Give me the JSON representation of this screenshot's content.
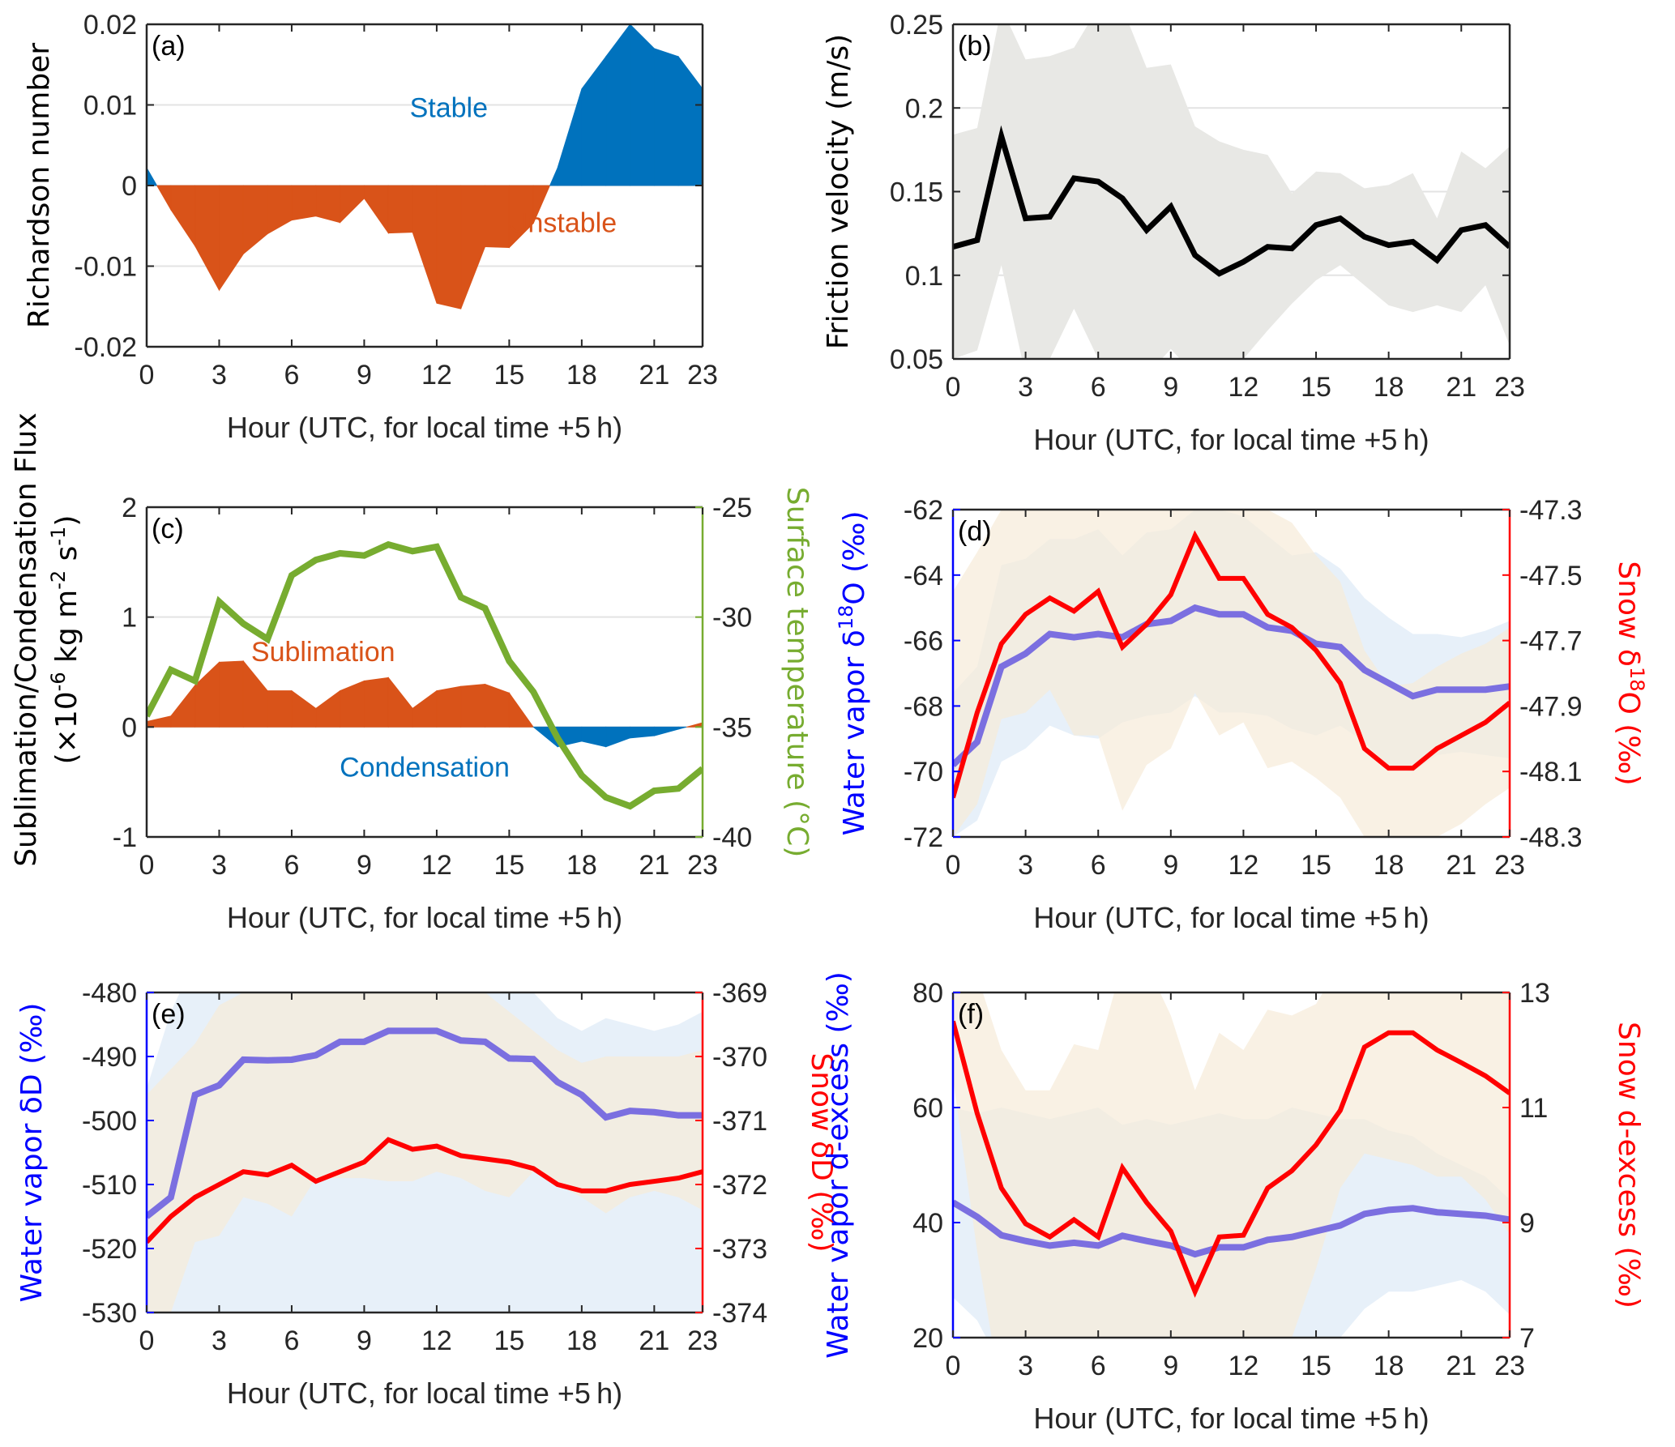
{
  "figure": {
    "x_label": "Hour (UTC, for local time +5 h)",
    "x_ticks": [
      0,
      3,
      6,
      9,
      12,
      15,
      18,
      21,
      23
    ],
    "hours": [
      0,
      1,
      2,
      3,
      4,
      5,
      6,
      7,
      8,
      9,
      10,
      11,
      12,
      13,
      14,
      15,
      16,
      17,
      18,
      19,
      20,
      21,
      22,
      23
    ],
    "colors": {
      "axis": "#262626",
      "grid": "#e3e3e3",
      "stable": "#0072bd",
      "unstable": "#d95319",
      "temperature": "#77ac30",
      "vapor_axis": "#0000ff",
      "vapor_line": "#7b6fe0",
      "vapor_line_solid": "#0000ff",
      "snow": "#ff0000",
      "vapor_band": "#dde9f7",
      "snow_band": "#f7ebd9",
      "overlap_band": "#e7e3da",
      "gray_band": "#e8e8e5",
      "black_line": "#000000"
    }
  },
  "chart_data": [
    {
      "id": "a",
      "panel_tag": "(a)",
      "type": "area",
      "ylabel": "Richardson number",
      "xlabel": "Hour (UTC, for local time +5 h)",
      "ylim": [
        -0.02,
        0.02
      ],
      "yticks": [
        "-0.02",
        "-0.01",
        "0",
        "0.01",
        "0.02"
      ],
      "ytick_values": [
        -0.02,
        -0.01,
        0,
        0.01,
        0.02
      ],
      "grid": true,
      "annotations": [
        {
          "text": "Stable",
          "color": "#0072bd",
          "x": 12.5,
          "y": 0.0085
        },
        {
          "text": "Unstable",
          "color": "#d95319",
          "x": 17.2,
          "y": -0.0058
        }
      ],
      "series": [
        {
          "name": "Richardson number",
          "positive_color": "#0072bd",
          "negative_color": "#d95319",
          "values": [
            0.0022,
            -0.003,
            -0.0075,
            -0.013,
            -0.0085,
            -0.006,
            -0.0043,
            -0.0038,
            -0.0046,
            -0.0016,
            -0.0059,
            -0.0058,
            -0.0146,
            -0.0153,
            -0.0076,
            -0.0077,
            -0.0047,
            0.0022,
            0.012,
            0.016,
            0.02,
            0.017,
            0.016,
            0.012
          ]
        }
      ]
    },
    {
      "id": "b",
      "panel_tag": "(b)",
      "type": "line",
      "ylabel": "Friction velocity (m/s)",
      "xlabel": "Hour (UTC, for local time +5 h)",
      "ylim": [
        0.05,
        0.25
      ],
      "yticks": [
        "0.05",
        "0.1",
        "0.15",
        "0.2",
        "0.25"
      ],
      "ytick_values": [
        0.05,
        0.1,
        0.15,
        0.2,
        0.25
      ],
      "grid": true,
      "series": [
        {
          "name": "Friction velocity",
          "color": "#000000",
          "values": [
            0.117,
            0.121,
            0.183,
            0.134,
            0.135,
            0.158,
            0.156,
            0.146,
            0.127,
            0.141,
            0.112,
            0.101,
            0.108,
            0.117,
            0.116,
            0.13,
            0.134,
            0.123,
            0.118,
            0.12,
            0.109,
            0.127,
            0.13,
            0.117
          ],
          "band_upper": [
            0.184,
            0.188,
            0.26,
            0.229,
            0.231,
            0.236,
            0.26,
            0.26,
            0.224,
            0.226,
            0.189,
            0.18,
            0.175,
            0.172,
            0.149,
            0.162,
            0.161,
            0.152,
            0.154,
            0.161,
            0.134,
            0.174,
            0.164,
            0.177
          ],
          "band_lower": [
            0.05,
            0.055,
            0.106,
            0.04,
            0.05,
            0.08,
            0.05,
            0.04,
            0.04,
            0.056,
            0.04,
            0.04,
            0.05,
            0.067,
            0.083,
            0.097,
            0.106,
            0.094,
            0.082,
            0.078,
            0.082,
            0.078,
            0.094,
            0.058
          ],
          "band_color": "#e8e8e5"
        }
      ]
    },
    {
      "id": "c",
      "panel_tag": "(c)",
      "type": "area",
      "ylabel_lines": [
        "Sublimation/Condensation Flux",
        "(×10",
        "-6",
        " kg m",
        "-2",
        " s",
        "-1",
        ")"
      ],
      "ylabel": "Sublimation/Condensation Flux (×10^-6 kg m^-2 s^-1)",
      "ylabel_right": "Surface temperature (°C)",
      "xlabel": "Hour (UTC, for local time +5 h)",
      "ylim": [
        -1,
        2
      ],
      "yticks": [
        "-1",
        "0",
        "1",
        "2"
      ],
      "ytick_values": [
        -1,
        0,
        1,
        2
      ],
      "ylim_right": [
        -40,
        -25
      ],
      "yticks_right": [
        "-40",
        "-35",
        "-30",
        "-25"
      ],
      "ytick_values_right": [
        -40,
        -35,
        -30,
        -25
      ],
      "grid": true,
      "annotations": [
        {
          "text": "Sublimation",
          "color": "#d95319",
          "x": 7.3,
          "y": 0.6
        },
        {
          "text": "Condensation",
          "color": "#0072bd",
          "x": 11.5,
          "y": -0.45
        }
      ],
      "series": [
        {
          "name": "Flux",
          "positive_color": "#d95319",
          "negative_color": "#0072bd",
          "axis": "left",
          "values": [
            0.05,
            0.1,
            0.38,
            0.59,
            0.6,
            0.33,
            0.33,
            0.17,
            0.33,
            0.42,
            0.45,
            0.17,
            0.33,
            0.37,
            0.39,
            0.31,
            0.0,
            -0.18,
            -0.13,
            -0.18,
            -0.1,
            -0.08,
            -0.02,
            0.04
          ]
        },
        {
          "name": "Surface temperature",
          "color": "#77ac30",
          "axis": "right",
          "values": [
            -34.5,
            -32.4,
            -32.9,
            -29.3,
            -30.3,
            -31.0,
            -28.1,
            -27.4,
            -27.1,
            -27.2,
            -26.7,
            -27.0,
            -26.8,
            -29.1,
            -29.6,
            -32.0,
            -33.4,
            -35.5,
            -37.2,
            -38.2,
            -38.6,
            -37.9,
            -37.8,
            -36.9
          ]
        }
      ]
    },
    {
      "id": "d",
      "panel_tag": "(d)",
      "type": "line",
      "ylabel_parts": [
        "Water vapor δ",
        "18",
        "O (‰)"
      ],
      "ylabel": "Water vapor δ18O (‰)",
      "ylabel_right_parts": [
        "Snow δ",
        "18",
        "O (‰)"
      ],
      "ylabel_right": "Snow δ18O (‰)",
      "xlabel": "Hour (UTC, for local time +5 h)",
      "ylim": [
        -72,
        -62
      ],
      "yticks": [
        "-72",
        "-70",
        "-68",
        "-66",
        "-64",
        "-62"
      ],
      "ytick_values": [
        -72,
        -70,
        -68,
        -66,
        -64,
        -62
      ],
      "ylim_right": [
        -48.3,
        -47.3
      ],
      "yticks_right": [
        "-48.3",
        "-48.1",
        "-47.9",
        "-47.7",
        "-47.5",
        "-47.3"
      ],
      "ytick_values_right": [
        -48.3,
        -48.1,
        -47.9,
        -47.7,
        -47.5,
        -47.3
      ],
      "grid": false,
      "series": [
        {
          "name": "Water vapor δ18O",
          "color": "#7b6fe0",
          "axis": "left",
          "values": [
            -69.8,
            -69.1,
            -66.8,
            -66.4,
            -65.8,
            -65.9,
            -65.8,
            -65.9,
            -65.5,
            -65.4,
            -65.0,
            -65.2,
            -65.2,
            -65.6,
            -65.7,
            -66.1,
            -66.2,
            -66.9,
            -67.3,
            -67.7,
            -67.5,
            -67.5,
            -67.5,
            -67.4
          ],
          "band_upper": [
            -67.6,
            -66.8,
            -63.7,
            -63.5,
            -62.9,
            -62.9,
            -62.6,
            -63.4,
            -62.7,
            -62.6,
            -62.0,
            -62.0,
            -62.2,
            -62.8,
            -63.4,
            -63.3,
            -63.8,
            -64.7,
            -65.3,
            -65.8,
            -65.8,
            -65.9,
            -65.7,
            -65.4
          ],
          "band_lower": [
            -72,
            -71.5,
            -69.7,
            -69.3,
            -68.6,
            -68.9,
            -69.0,
            -68.5,
            -68.3,
            -68.2,
            -67.7,
            -68.2,
            -68.2,
            -68.3,
            -68.7,
            -68.9,
            -68.6,
            -69.1,
            -69.9,
            -70.0,
            -69.5,
            -69.4,
            -69.5,
            -69.6
          ],
          "band_color": "#dde9f7"
        },
        {
          "name": "Snow δ18O",
          "color": "#ff0000",
          "axis": "right",
          "values": [
            -48.18,
            -47.92,
            -47.71,
            -47.62,
            -47.57,
            -47.61,
            -47.55,
            -47.72,
            -47.65,
            -47.56,
            -47.38,
            -47.51,
            -47.51,
            -47.62,
            -47.66,
            -47.73,
            -47.83,
            -48.03,
            -48.09,
            -48.09,
            -48.03,
            -47.99,
            -47.95,
            -47.89
          ],
          "band_upper": [
            -47.55,
            -47.43,
            -47.3,
            -47.3,
            -47.3,
            -47.3,
            -47.3,
            -47.3,
            -47.3,
            -47.3,
            -47.3,
            -47.3,
            -47.3,
            -47.3,
            -47.34,
            -47.44,
            -47.52,
            -47.73,
            -47.84,
            -47.83,
            -47.78,
            -47.74,
            -47.71,
            -47.66
          ],
          "band_lower": [
            -48.3,
            -48.2,
            -47.94,
            -47.92,
            -47.85,
            -47.99,
            -47.99,
            -48.22,
            -48.08,
            -48.03,
            -47.86,
            -47.99,
            -47.95,
            -48.09,
            -48.07,
            -48.12,
            -48.18,
            -48.3,
            -48.3,
            -48.3,
            -48.3,
            -48.26,
            -48.2,
            -48.15
          ],
          "band_color": "#f7ebd9"
        }
      ]
    },
    {
      "id": "e",
      "panel_tag": "(e)",
      "type": "line",
      "ylabel": "Water vapor δD (‰)",
      "ylabel_right": "Snow δD (‰)",
      "xlabel": "Hour (UTC, for local time +5 h)",
      "ylim": [
        -530,
        -480
      ],
      "yticks": [
        "-530",
        "-520",
        "-510",
        "-500",
        "-490",
        "-480"
      ],
      "ytick_values": [
        -530,
        -520,
        -510,
        -500,
        -490,
        -480
      ],
      "ylim_right": [
        -374,
        -369
      ],
      "yticks_right": [
        "-374",
        "-373",
        "-372",
        "-371",
        "-370",
        "-369"
      ],
      "ytick_values_right": [
        -374,
        -373,
        -372,
        -371,
        -370,
        -369
      ],
      "grid": false,
      "series": [
        {
          "name": "Water vapor δD",
          "color": "#7b6fe0",
          "axis": "left",
          "values": [
            -515,
            -512,
            -496,
            -494.5,
            -490.5,
            -490.6,
            -490.5,
            -489.8,
            -487.7,
            -487.7,
            -486,
            -486,
            -486,
            -487.5,
            -487.7,
            -490.3,
            -490.4,
            -494,
            -496,
            -499.5,
            -498.5,
            -498.7,
            -499.2,
            -499.2
          ],
          "band_upper": [
            -495,
            -483,
            -475,
            -478,
            -478,
            -478,
            -478,
            -478,
            -478,
            -478,
            -478,
            -478,
            -478,
            -478,
            -478,
            -478,
            -480,
            -484,
            -486,
            -484,
            -485,
            -486,
            -485,
            -483
          ],
          "band_lower": [
            -535,
            -535,
            -535,
            -535,
            -535,
            -535,
            -535,
            -535,
            -535,
            -535,
            -535,
            -535,
            -535,
            -535,
            -535,
            -535,
            -535,
            -535,
            -535,
            -535,
            -535,
            -535,
            -535,
            -535
          ],
          "band_color": "#dde9f7"
        },
        {
          "name": "Snow δD",
          "color": "#ff0000",
          "axis": "right",
          "values": [
            -372.9,
            -372.5,
            -372.2,
            -372.0,
            -371.8,
            -371.85,
            -371.7,
            -371.95,
            -371.8,
            -371.65,
            -371.3,
            -371.45,
            -371.4,
            -371.55,
            -371.6,
            -371.65,
            -371.75,
            -372.0,
            -372.1,
            -372.1,
            -372.0,
            -371.95,
            -371.9,
            -371.8
          ],
          "band_upper": [
            -370.6,
            -370.2,
            -369.8,
            -369.2,
            -369,
            -369,
            -369,
            -369,
            -369,
            -369,
            -369,
            -369,
            -369,
            -369,
            -369,
            -369.3,
            -369.6,
            -369.9,
            -370.1,
            -370,
            -370,
            -370,
            -370,
            -369.9
          ],
          "band_lower": [
            -374,
            -374,
            -372.9,
            -372.8,
            -372.2,
            -372.3,
            -372.5,
            -371.9,
            -371.9,
            -371.9,
            -371.95,
            -371.95,
            -371.8,
            -371.9,
            -372.1,
            -372.2,
            -371.8,
            -372.0,
            -372.2,
            -372.45,
            -372.2,
            -372.1,
            -372.2,
            -372.4
          ],
          "band_color": "#f7ebd9"
        }
      ]
    },
    {
      "id": "f",
      "panel_tag": "(f)",
      "type": "line",
      "ylabel": "Water vapor d-excess (‰)",
      "ylabel_right": "Snow d-excess (‰)",
      "xlabel": "Hour (UTC, for local time +5 h)",
      "ylim": [
        20,
        80
      ],
      "yticks": [
        "20",
        "40",
        "60",
        "80"
      ],
      "ytick_values": [
        20,
        40,
        60,
        80
      ],
      "ylim_right": [
        7,
        13
      ],
      "yticks_right": [
        "7",
        "9",
        "11",
        "13"
      ],
      "ytick_values_right": [
        7,
        9,
        11,
        13
      ],
      "grid": false,
      "series": [
        {
          "name": "Water vapor d-excess",
          "color": "#7b6fe0",
          "axis": "left",
          "values": [
            43.5,
            41,
            37.8,
            36.8,
            36,
            36.5,
            36,
            37.7,
            36.8,
            36,
            34.5,
            35.7,
            35.7,
            37,
            37.5,
            38.5,
            39.5,
            41.5,
            42.2,
            42.5,
            41.8,
            41.5,
            41.2,
            40.5
          ],
          "band_upper": [
            60,
            59,
            60,
            59,
            58,
            59,
            60,
            57,
            58,
            57,
            58,
            59,
            58,
            58,
            60,
            59,
            58,
            58,
            56,
            55,
            52,
            50,
            48,
            44
          ],
          "band_lower": [
            27,
            23,
            15,
            15,
            15,
            15,
            15,
            15,
            15,
            15,
            15,
            15,
            15,
            15,
            15,
            15,
            20,
            25,
            28,
            28,
            29,
            30,
            28,
            24
          ],
          "band_color": "#dde9f7"
        },
        {
          "name": "Snow d-excess",
          "color": "#ff0000",
          "axis": "right",
          "values": [
            12.5,
            10.9,
            9.6,
            8.98,
            8.75,
            9.05,
            8.75,
            9.95,
            9.35,
            8.85,
            7.8,
            8.75,
            8.78,
            9.6,
            9.9,
            10.35,
            10.95,
            12.05,
            12.3,
            12.3,
            12.0,
            11.78,
            11.55,
            11.25
          ],
          "band_upper": [
            13.5,
            13.3,
            12.0,
            11.3,
            11.3,
            12.1,
            12.0,
            13.5,
            13.5,
            12.6,
            11.3,
            12.3,
            12.0,
            12.7,
            12.6,
            12.8,
            13.5,
            13.5,
            13.5,
            13.5,
            13.5,
            13.5,
            13.5,
            13.5
          ],
          "band_lower": [
            11.5,
            8.5,
            6.0,
            6.0,
            6.0,
            6.0,
            6.0,
            6.0,
            6.0,
            6.0,
            6.0,
            6.0,
            6.0,
            6.0,
            7.0,
            8.2,
            9.6,
            10.2,
            10.1,
            10.0,
            9.8,
            9.8,
            9.4,
            8.8
          ],
          "band_color": "#f7ebd9"
        }
      ]
    }
  ]
}
